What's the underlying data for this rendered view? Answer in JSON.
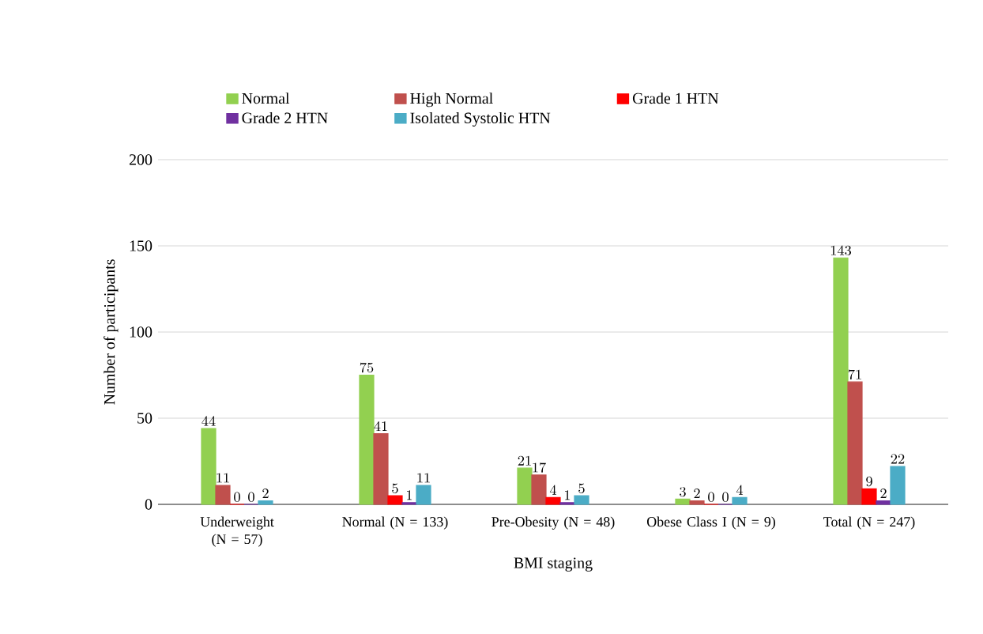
{
  "chart_data": {
    "type": "bar",
    "xlabel": "BMI staging",
    "ylabel": "Number of participants",
    "categories": [
      "Underweight (N = 57)",
      "Normal (N = 133)",
      "Pre-Obesity (N = 48)",
      "Obese Class I (N = 9)",
      "Total (N = 247)"
    ],
    "series": [
      {
        "name": "Normal",
        "color": "#92d050",
        "values": [
          44,
          75,
          21,
          3,
          143
        ]
      },
      {
        "name": "High Normal",
        "color": "#c0504d",
        "values": [
          11,
          41,
          17,
          2,
          71
        ]
      },
      {
        "name": "Grade 1 HTN",
        "color": "#ff0000",
        "values": [
          0,
          5,
          4,
          0,
          9
        ]
      },
      {
        "name": "Grade 2 HTN",
        "color": "#7030a0",
        "values": [
          0,
          1,
          1,
          0,
          2
        ]
      },
      {
        "name": "Isolated Systolic HTN",
        "color": "#4bacc6",
        "values": [
          2,
          11,
          5,
          4,
          22
        ]
      }
    ],
    "ylim": [
      0,
      200
    ],
    "yticks": [
      0,
      50,
      100,
      150,
      200
    ],
    "grid": "y",
    "legend": "top",
    "data_labels": true
  }
}
